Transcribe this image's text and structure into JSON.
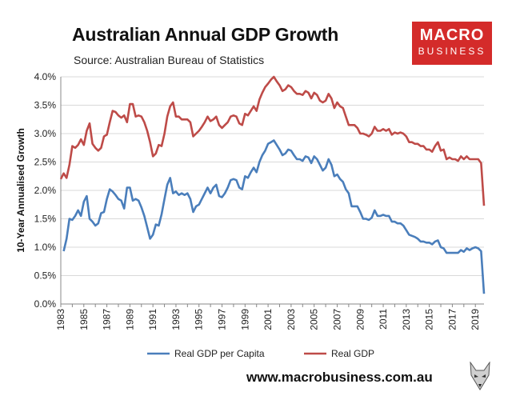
{
  "header": {
    "title": "Australian Annual GDP Growth",
    "source": "Source: Australian Bureau of Statistics"
  },
  "logo": {
    "line1": "MACRO",
    "line2": "BUSINESS"
  },
  "footer": {
    "website": "www.macrobusiness.com.au"
  },
  "colors": {
    "per_capita": "#4a7ebb",
    "real_gdp": "#be4b48",
    "logo_bg": "#d42b2a"
  },
  "chart_data": {
    "type": "line",
    "title": "Australian Annual GDP Growth",
    "xlabel": "",
    "ylabel": "10-Year Annualised Growth",
    "xlim": [
      1983,
      2019.75
    ],
    "ylim": [
      0,
      4
    ],
    "yticks": [
      "0.0%",
      "0.5%",
      "1.0%",
      "1.5%",
      "2.0%",
      "2.5%",
      "3.0%",
      "3.5%",
      "4.0%"
    ],
    "xticks": [
      "1983",
      "1985",
      "1987",
      "1989",
      "1991",
      "1993",
      "1995",
      "1997",
      "1999",
      "2001",
      "2003",
      "2005",
      "2007",
      "2009",
      "2011",
      "2013",
      "2015",
      "2017",
      "2019"
    ],
    "legend": "bottom",
    "series": [
      {
        "name": "Real GDP per Capita",
        "color": "#4a7ebb",
        "points": [
          [
            1983.25,
            0.93
          ],
          [
            1983.5,
            1.15
          ],
          [
            1983.75,
            1.5
          ],
          [
            1984,
            1.48
          ],
          [
            1984.25,
            1.55
          ],
          [
            1984.5,
            1.65
          ],
          [
            1984.75,
            1.55
          ],
          [
            1985,
            1.8
          ],
          [
            1985.25,
            1.9
          ],
          [
            1985.5,
            1.5
          ],
          [
            1985.75,
            1.45
          ],
          [
            1986,
            1.38
          ],
          [
            1986.25,
            1.42
          ],
          [
            1986.5,
            1.6
          ],
          [
            1986.75,
            1.62
          ],
          [
            1987,
            1.85
          ],
          [
            1987.25,
            2.02
          ],
          [
            1987.5,
            1.98
          ],
          [
            1987.75,
            1.92
          ],
          [
            1988,
            1.85
          ],
          [
            1988.25,
            1.82
          ],
          [
            1988.5,
            1.68
          ],
          [
            1988.75,
            2.05
          ],
          [
            1989,
            2.05
          ],
          [
            1989.25,
            1.82
          ],
          [
            1989.5,
            1.85
          ],
          [
            1989.75,
            1.82
          ],
          [
            1990,
            1.7
          ],
          [
            1990.25,
            1.55
          ],
          [
            1990.5,
            1.35
          ],
          [
            1990.75,
            1.15
          ],
          [
            1991,
            1.22
          ],
          [
            1991.25,
            1.4
          ],
          [
            1991.5,
            1.38
          ],
          [
            1991.75,
            1.58
          ],
          [
            1992,
            1.85
          ],
          [
            1992.25,
            2.1
          ],
          [
            1992.5,
            2.22
          ],
          [
            1992.75,
            1.95
          ],
          [
            1993,
            1.98
          ],
          [
            1993.25,
            1.92
          ],
          [
            1993.5,
            1.95
          ],
          [
            1993.75,
            1.92
          ],
          [
            1994,
            1.95
          ],
          [
            1994.25,
            1.85
          ],
          [
            1994.5,
            1.62
          ],
          [
            1994.75,
            1.72
          ],
          [
            1995,
            1.75
          ],
          [
            1995.25,
            1.85
          ],
          [
            1995.5,
            1.95
          ],
          [
            1995.75,
            2.05
          ],
          [
            1996,
            1.95
          ],
          [
            1996.25,
            2.05
          ],
          [
            1996.5,
            2.1
          ],
          [
            1996.75,
            1.9
          ],
          [
            1997,
            1.88
          ],
          [
            1997.25,
            1.95
          ],
          [
            1997.5,
            2.05
          ],
          [
            1997.75,
            2.18
          ],
          [
            1998,
            2.2
          ],
          [
            1998.25,
            2.18
          ],
          [
            1998.5,
            2.05
          ],
          [
            1998.75,
            2.02
          ],
          [
            1999,
            2.25
          ],
          [
            1999.25,
            2.22
          ],
          [
            1999.5,
            2.32
          ],
          [
            1999.75,
            2.4
          ],
          [
            2000,
            2.32
          ],
          [
            2000.25,
            2.5
          ],
          [
            2000.5,
            2.62
          ],
          [
            2000.75,
            2.7
          ],
          [
            2001,
            2.82
          ],
          [
            2001.25,
            2.85
          ],
          [
            2001.5,
            2.88
          ],
          [
            2001.75,
            2.8
          ],
          [
            2002,
            2.72
          ],
          [
            2002.25,
            2.62
          ],
          [
            2002.5,
            2.65
          ],
          [
            2002.75,
            2.72
          ],
          [
            2003,
            2.7
          ],
          [
            2003.25,
            2.62
          ],
          [
            2003.5,
            2.55
          ],
          [
            2003.75,
            2.55
          ],
          [
            2004,
            2.52
          ],
          [
            2004.25,
            2.6
          ],
          [
            2004.5,
            2.58
          ],
          [
            2004.75,
            2.48
          ],
          [
            2005,
            2.6
          ],
          [
            2005.25,
            2.55
          ],
          [
            2005.5,
            2.45
          ],
          [
            2005.75,
            2.35
          ],
          [
            2006,
            2.4
          ],
          [
            2006.25,
            2.55
          ],
          [
            2006.5,
            2.45
          ],
          [
            2006.75,
            2.25
          ],
          [
            2007,
            2.28
          ],
          [
            2007.25,
            2.2
          ],
          [
            2007.5,
            2.15
          ],
          [
            2007.75,
            2.02
          ],
          [
            2008,
            1.95
          ],
          [
            2008.25,
            1.72
          ],
          [
            2008.5,
            1.72
          ],
          [
            2008.75,
            1.72
          ],
          [
            2009,
            1.62
          ],
          [
            2009.25,
            1.5
          ],
          [
            2009.5,
            1.5
          ],
          [
            2009.75,
            1.48
          ],
          [
            2010,
            1.52
          ],
          [
            2010.25,
            1.65
          ],
          [
            2010.5,
            1.55
          ],
          [
            2010.75,
            1.55
          ],
          [
            2011,
            1.57
          ],
          [
            2011.25,
            1.55
          ],
          [
            2011.5,
            1.55
          ],
          [
            2011.75,
            1.45
          ],
          [
            2012,
            1.45
          ],
          [
            2012.25,
            1.42
          ],
          [
            2012.5,
            1.42
          ],
          [
            2012.75,
            1.38
          ],
          [
            2013,
            1.3
          ],
          [
            2013.25,
            1.22
          ],
          [
            2013.5,
            1.2
          ],
          [
            2013.75,
            1.18
          ],
          [
            2014,
            1.15
          ],
          [
            2014.25,
            1.1
          ],
          [
            2014.5,
            1.1
          ],
          [
            2014.75,
            1.08
          ],
          [
            2015,
            1.08
          ],
          [
            2015.25,
            1.05
          ],
          [
            2015.5,
            1.1
          ],
          [
            2015.75,
            1.12
          ],
          [
            2016,
            1.0
          ],
          [
            2016.25,
            0.98
          ],
          [
            2016.5,
            0.9
          ],
          [
            2016.75,
            0.9
          ],
          [
            2017,
            0.9
          ],
          [
            2017.25,
            0.9
          ],
          [
            2017.5,
            0.9
          ],
          [
            2017.75,
            0.95
          ],
          [
            2018,
            0.92
          ],
          [
            2018.25,
            0.98
          ],
          [
            2018.5,
            0.95
          ],
          [
            2018.75,
            0.98
          ],
          [
            2019,
            1.0
          ],
          [
            2019.25,
            0.98
          ],
          [
            2019.5,
            0.93
          ],
          [
            2019.75,
            0.18
          ]
        ]
      },
      {
        "name": "Real GDP",
        "color": "#be4b48",
        "points": [
          [
            1983,
            2.2
          ],
          [
            1983.25,
            2.3
          ],
          [
            1983.5,
            2.22
          ],
          [
            1983.75,
            2.45
          ],
          [
            1984,
            2.78
          ],
          [
            1984.25,
            2.75
          ],
          [
            1984.5,
            2.8
          ],
          [
            1984.75,
            2.9
          ],
          [
            1985,
            2.8
          ],
          [
            1985.25,
            3.05
          ],
          [
            1985.5,
            3.18
          ],
          [
            1985.75,
            2.82
          ],
          [
            1986,
            2.75
          ],
          [
            1986.25,
            2.7
          ],
          [
            1986.5,
            2.75
          ],
          [
            1986.75,
            2.95
          ],
          [
            1987,
            2.98
          ],
          [
            1987.25,
            3.2
          ],
          [
            1987.5,
            3.4
          ],
          [
            1987.75,
            3.38
          ],
          [
            1988,
            3.32
          ],
          [
            1988.25,
            3.28
          ],
          [
            1988.5,
            3.32
          ],
          [
            1988.75,
            3.2
          ],
          [
            1989,
            3.52
          ],
          [
            1989.25,
            3.52
          ],
          [
            1989.5,
            3.3
          ],
          [
            1989.75,
            3.32
          ],
          [
            1990,
            3.3
          ],
          [
            1990.25,
            3.2
          ],
          [
            1990.5,
            3.05
          ],
          [
            1990.75,
            2.85
          ],
          [
            1991,
            2.6
          ],
          [
            1991.25,
            2.65
          ],
          [
            1991.5,
            2.8
          ],
          [
            1991.75,
            2.78
          ],
          [
            1992,
            3.0
          ],
          [
            1992.25,
            3.3
          ],
          [
            1992.5,
            3.48
          ],
          [
            1992.75,
            3.55
          ],
          [
            1993,
            3.3
          ],
          [
            1993.25,
            3.3
          ],
          [
            1993.5,
            3.25
          ],
          [
            1993.75,
            3.25
          ],
          [
            1994,
            3.25
          ],
          [
            1994.25,
            3.2
          ],
          [
            1994.5,
            2.95
          ],
          [
            1994.75,
            3.0
          ],
          [
            1995,
            3.05
          ],
          [
            1995.25,
            3.12
          ],
          [
            1995.5,
            3.2
          ],
          [
            1995.75,
            3.3
          ],
          [
            1996,
            3.22
          ],
          [
            1996.25,
            3.25
          ],
          [
            1996.5,
            3.3
          ],
          [
            1996.75,
            3.15
          ],
          [
            1997,
            3.1
          ],
          [
            1997.25,
            3.15
          ],
          [
            1997.5,
            3.2
          ],
          [
            1997.75,
            3.3
          ],
          [
            1998,
            3.32
          ],
          [
            1998.25,
            3.3
          ],
          [
            1998.5,
            3.18
          ],
          [
            1998.75,
            3.15
          ],
          [
            1999,
            3.35
          ],
          [
            1999.25,
            3.32
          ],
          [
            1999.5,
            3.4
          ],
          [
            1999.75,
            3.48
          ],
          [
            2000,
            3.4
          ],
          [
            2000.25,
            3.6
          ],
          [
            2000.5,
            3.72
          ],
          [
            2000.75,
            3.82
          ],
          [
            2001,
            3.88
          ],
          [
            2001.25,
            3.95
          ],
          [
            2001.5,
            4.0
          ],
          [
            2001.75,
            3.92
          ],
          [
            2002,
            3.85
          ],
          [
            2002.25,
            3.75
          ],
          [
            2002.5,
            3.78
          ],
          [
            2002.75,
            3.85
          ],
          [
            2003,
            3.82
          ],
          [
            2003.25,
            3.75
          ],
          [
            2003.5,
            3.7
          ],
          [
            2003.75,
            3.7
          ],
          [
            2004,
            3.68
          ],
          [
            2004.25,
            3.75
          ],
          [
            2004.5,
            3.72
          ],
          [
            2004.75,
            3.62
          ],
          [
            2005,
            3.72
          ],
          [
            2005.25,
            3.68
          ],
          [
            2005.5,
            3.58
          ],
          [
            2005.75,
            3.55
          ],
          [
            2006,
            3.58
          ],
          [
            2006.25,
            3.7
          ],
          [
            2006.5,
            3.62
          ],
          [
            2006.75,
            3.45
          ],
          [
            2007,
            3.55
          ],
          [
            2007.25,
            3.48
          ],
          [
            2007.5,
            3.45
          ],
          [
            2007.75,
            3.3
          ],
          [
            2008,
            3.15
          ],
          [
            2008.25,
            3.15
          ],
          [
            2008.5,
            3.15
          ],
          [
            2008.75,
            3.1
          ],
          [
            2009,
            3.0
          ],
          [
            2009.25,
            3.0
          ],
          [
            2009.5,
            2.98
          ],
          [
            2009.75,
            2.95
          ],
          [
            2010,
            3.0
          ],
          [
            2010.25,
            3.12
          ],
          [
            2010.5,
            3.05
          ],
          [
            2010.75,
            3.05
          ],
          [
            2011,
            3.08
          ],
          [
            2011.25,
            3.05
          ],
          [
            2011.5,
            3.08
          ],
          [
            2011.75,
            2.98
          ],
          [
            2012,
            3.02
          ],
          [
            2012.25,
            3.0
          ],
          [
            2012.5,
            3.02
          ],
          [
            2012.75,
            3.0
          ],
          [
            2013,
            2.95
          ],
          [
            2013.25,
            2.85
          ],
          [
            2013.5,
            2.85
          ],
          [
            2013.75,
            2.82
          ],
          [
            2014,
            2.82
          ],
          [
            2014.25,
            2.78
          ],
          [
            2014.5,
            2.78
          ],
          [
            2014.75,
            2.72
          ],
          [
            2015,
            2.72
          ],
          [
            2015.25,
            2.68
          ],
          [
            2015.5,
            2.78
          ],
          [
            2015.75,
            2.85
          ],
          [
            2016,
            2.7
          ],
          [
            2016.25,
            2.72
          ],
          [
            2016.5,
            2.55
          ],
          [
            2016.75,
            2.58
          ],
          [
            2017,
            2.55
          ],
          [
            2017.25,
            2.55
          ],
          [
            2017.5,
            2.52
          ],
          [
            2017.75,
            2.6
          ],
          [
            2018,
            2.55
          ],
          [
            2018.25,
            2.6
          ],
          [
            2018.5,
            2.55
          ],
          [
            2018.75,
            2.55
          ],
          [
            2019,
            2.55
          ],
          [
            2019.25,
            2.55
          ],
          [
            2019.5,
            2.48
          ],
          [
            2019.75,
            1.73
          ]
        ]
      }
    ]
  }
}
